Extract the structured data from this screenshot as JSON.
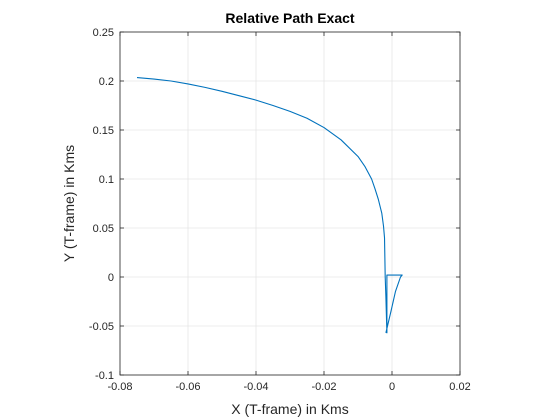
{
  "chart_data": {
    "type": "line",
    "title": "Relative Path Exact",
    "xlabel": "X (T-frame) in Kms",
    "ylabel": "Y (T-frame) in Kms",
    "xlim": [
      -0.08,
      0.02
    ],
    "ylim": [
      -0.1,
      0.25
    ],
    "xticks": [
      -0.08,
      -0.06,
      -0.04,
      -0.02,
      0,
      0.02
    ],
    "xtick_labels": [
      "-0.08",
      "-0.06",
      "-0.04",
      "-0.02",
      "0",
      "0.02"
    ],
    "yticks": [
      -0.1,
      -0.05,
      0,
      0.05,
      0.1,
      0.15,
      0.2,
      0.25
    ],
    "ytick_labels": [
      "-0.1",
      "-0.05",
      "0",
      "0.05",
      "0.1",
      "0.15",
      "0.2",
      "0.25"
    ],
    "grid": true,
    "colors": {
      "line": "#0072BD",
      "grid": "#e6e6e6",
      "axis": "#262626"
    },
    "series": [
      {
        "x": [
          -0.075,
          -0.07,
          -0.065,
          -0.06,
          -0.055,
          -0.05,
          -0.045,
          -0.04,
          -0.035,
          -0.03,
          -0.025,
          -0.02,
          -0.015,
          -0.01,
          -0.008,
          -0.006,
          -0.005,
          -0.004,
          -0.003,
          -0.0025,
          -0.0022,
          -0.0021,
          -0.002,
          -0.0018,
          -0.0016,
          -0.0015,
          -0.0015,
          0.0005,
          0.003,
          0.0025,
          0.001,
          -0.0003,
          -0.0018
        ],
        "y": [
          0.2035,
          0.202,
          0.2,
          0.197,
          0.1935,
          0.1895,
          0.185,
          0.1805,
          0.175,
          0.169,
          0.162,
          0.1525,
          0.14,
          0.123,
          0.113,
          0.1,
          0.09,
          0.079,
          0.065,
          0.052,
          0.04,
          0.02,
          0.0,
          -0.02,
          -0.045,
          -0.057,
          0.002,
          0.002,
          0.002,
          0.0,
          -0.015,
          -0.035,
          -0.057
        ]
      }
    ]
  }
}
